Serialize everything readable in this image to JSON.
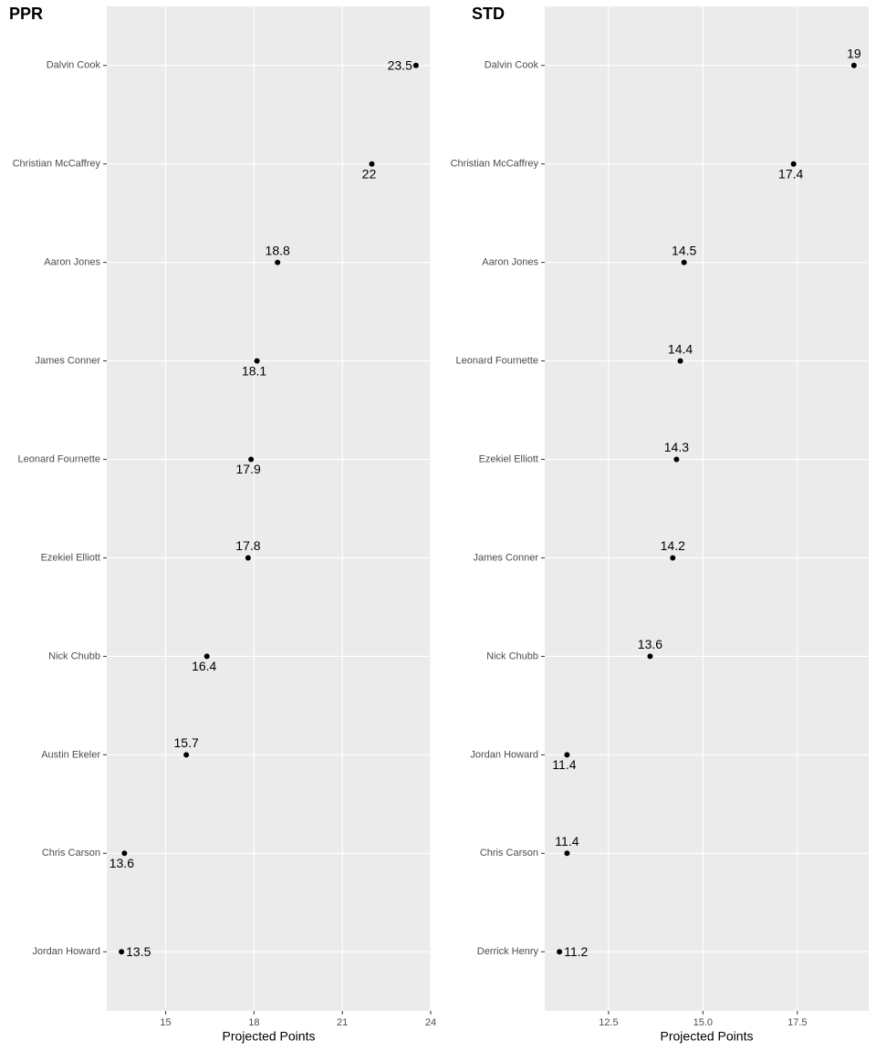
{
  "chart_data": [
    {
      "type": "dot",
      "title": "PPR",
      "xlabel": "Projected Points",
      "color": "#000000",
      "categories": [
        "Dalvin Cook",
        "Christian McCaffrey",
        "Aaron Jones",
        "James Conner",
        "Leonard Fournette",
        "Ezekiel Elliott",
        "Nick Chubb",
        "Austin Ekeler",
        "Chris Carson",
        "Jordan Howard"
      ],
      "values": [
        23.5,
        22,
        18.8,
        18.1,
        17.9,
        17.8,
        16.4,
        15.7,
        13.6,
        13.5
      ],
      "xlim": [
        13,
        24
      ],
      "xticks": [
        15,
        18,
        21,
        24
      ],
      "grid": true
    },
    {
      "type": "dot",
      "title": "STD",
      "xlabel": "Projected Points",
      "color": "#000000",
      "categories": [
        "Dalvin Cook",
        "Christian McCaffrey",
        "Aaron Jones",
        "Leonard Fournette",
        "Ezekiel Elliott",
        "James Conner",
        "Nick Chubb",
        "Jordan Howard",
        "Chris Carson",
        "Derrick Henry"
      ],
      "values": [
        19,
        17.4,
        14.5,
        14.4,
        14.3,
        14.2,
        13.6,
        11.4,
        11.4,
        11.2
      ],
      "xlim": [
        10.81,
        19.39
      ],
      "xticks": [
        12.5,
        {
          "value": 15,
          "label": "15.0"
        },
        17.5
      ],
      "grid": true
    }
  ]
}
